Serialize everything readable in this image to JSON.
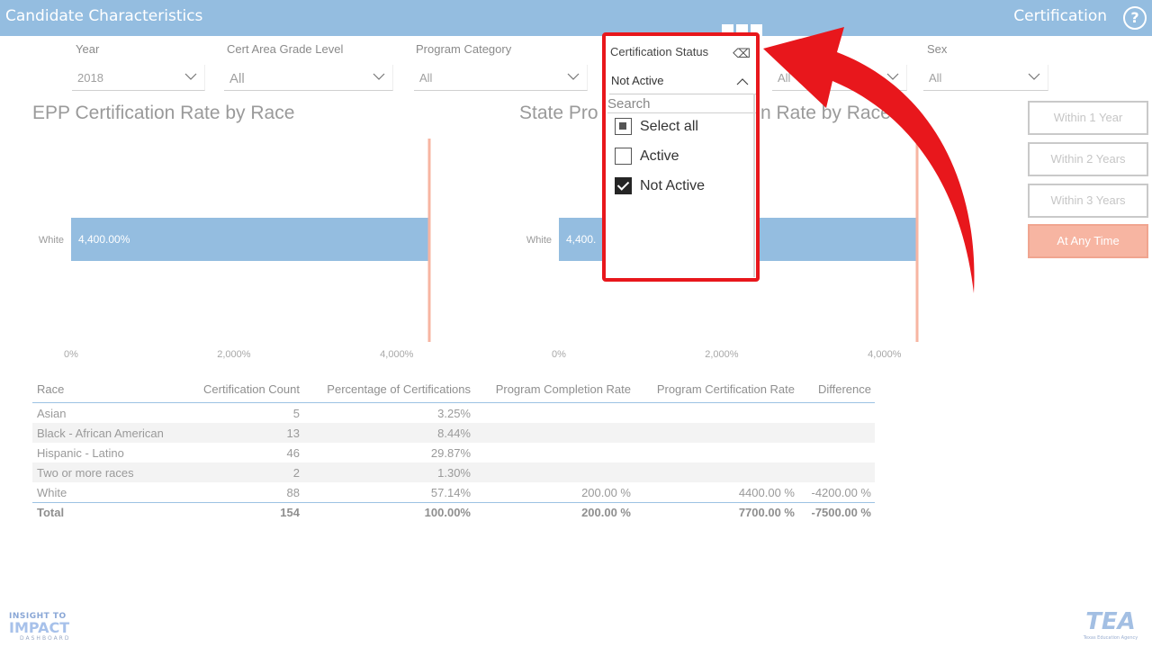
{
  "header": {
    "title": "Candidate Characteristics",
    "section": "Certification",
    "help": "?"
  },
  "filters": [
    {
      "label": "Year",
      "value": "2018"
    },
    {
      "label": "Cert Area Grade Level",
      "value": "All"
    },
    {
      "label": "Program Category",
      "value": "All"
    },
    {
      "label": "Certification Status",
      "value": "Not Active"
    },
    {
      "label": "",
      "value": "All"
    },
    {
      "label": "Sex",
      "value": "All"
    }
  ],
  "dropdown": {
    "label": "Certification Status",
    "value": "Not Active",
    "search_placeholder": "Search",
    "options": [
      {
        "label": "Select all",
        "state": "partial"
      },
      {
        "label": "Active",
        "state": "unchecked"
      },
      {
        "label": "Not Active",
        "state": "checked"
      }
    ]
  },
  "time_buttons": [
    {
      "label": "Within 1 Year",
      "active": false
    },
    {
      "label": "Within 2 Years",
      "active": false
    },
    {
      "label": "Within 3 Years",
      "active": false
    },
    {
      "label": "At Any Time",
      "active": true
    }
  ],
  "chart_data": [
    {
      "type": "bar",
      "orientation": "horizontal",
      "title": "EPP Certification Rate by Race",
      "categories": [
        "White"
      ],
      "values": [
        4400
      ],
      "data_labels": [
        "4,400.00%"
      ],
      "xlim": [
        0,
        4400
      ],
      "xticks": [
        "0%",
        "2,000%",
        "4,000%"
      ],
      "reference_line": 4400,
      "bar_color": "#94bde0",
      "line_color": "#f7b5a2"
    },
    {
      "type": "bar",
      "orientation": "horizontal",
      "title": "State Pro",
      "title_end": "n Rate by Race",
      "categories": [
        "White"
      ],
      "values": [
        4400
      ],
      "data_labels": [
        "4,400."
      ],
      "xlim": [
        0,
        4400
      ],
      "xticks": [
        "0%",
        "2,000%",
        "4,000%"
      ],
      "reference_line": 4400,
      "bar_color": "#94bde0",
      "line_color": "#f7b5a2"
    }
  ],
  "table": {
    "headers": [
      "Race",
      "Certification Count",
      "Percentage of Certifications",
      "Program Completion Rate",
      "Program Certification Rate",
      "Difference"
    ],
    "rows": [
      [
        "Asian",
        "5",
        "3.25%",
        "",
        "",
        ""
      ],
      [
        "Black - African American",
        "13",
        "8.44%",
        "",
        "",
        ""
      ],
      [
        "Hispanic - Latino",
        "46",
        "29.87%",
        "",
        "",
        ""
      ],
      [
        "Two or more races",
        "2",
        "1.30%",
        "",
        "",
        ""
      ],
      [
        "White",
        "88",
        "57.14%",
        "200.00 %",
        "4400.00 %",
        "-4200.00 %"
      ]
    ],
    "total": [
      "Total",
      "154",
      "100.00%",
      "200.00 %",
      "7700.00 %",
      "-7500.00 %"
    ]
  },
  "logos": {
    "left_line1": "INSIGHT TO",
    "left_line2": "IMPACT",
    "left_line3": "DASHBOARD",
    "right_line1": "TEA",
    "right_line2": "Texas Education Agency"
  },
  "colors": {
    "header": "#94bde0",
    "bar": "#94bde0",
    "accent": "#f7b5a2",
    "highlight": "#e8171c"
  }
}
